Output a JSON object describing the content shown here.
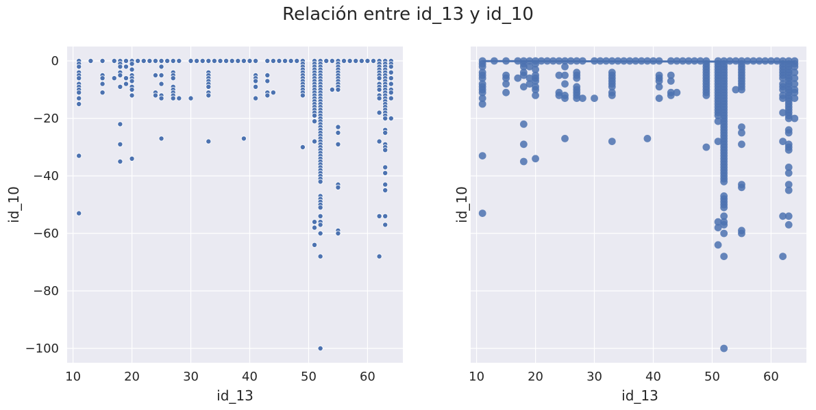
{
  "figure": {
    "title": "Relación entre id_13 y id_10"
  },
  "colors": {
    "background": "#eaeaf2",
    "grid": "#ffffff",
    "point": "#4c72b0",
    "text": "#262626"
  },
  "chart_data": [
    {
      "type": "scatter",
      "title": "",
      "xlabel": "id_13",
      "ylabel": "id_10",
      "xlim": [
        9,
        66
      ],
      "ylim": [
        -105,
        5
      ],
      "xticks": [
        10,
        20,
        30,
        40,
        50,
        60
      ],
      "yticks": [
        0,
        -20,
        -40,
        -60,
        -80,
        -100
      ],
      "ytick_labels": [
        "0",
        "−20",
        "−40",
        "−60",
        "−80",
        "−100"
      ],
      "grid": true,
      "marker": "small-dot-white-edge",
      "columns": [
        {
          "x": 11,
          "y": [
            0,
            -1,
            -2,
            -4,
            -5,
            -6,
            -8,
            -9,
            -10,
            -11,
            -13,
            -15,
            -33,
            -53
          ]
        },
        {
          "x": 13,
          "y": [
            0
          ]
        },
        {
          "x": 15,
          "y": [
            0,
            -5,
            -6,
            -8,
            -11
          ]
        },
        {
          "x": 17,
          "y": [
            0,
            -6
          ]
        },
        {
          "x": 18,
          "y": [
            0,
            -1,
            -2,
            -4,
            -5,
            -9,
            -22,
            -29,
            -35
          ]
        },
        {
          "x": 19,
          "y": [
            0,
            -2,
            -6,
            -8
          ]
        },
        {
          "x": 20,
          "y": [
            0,
            -1,
            -3,
            -5,
            -6,
            -7,
            -9,
            -10,
            -12,
            -34
          ]
        },
        {
          "x": 21,
          "y": [
            0
          ]
        },
        {
          "x": 22,
          "y": [
            0
          ]
        },
        {
          "x": 23,
          "y": [
            0
          ]
        },
        {
          "x": 24,
          "y": [
            0,
            -5,
            -11,
            -12
          ]
        },
        {
          "x": 25,
          "y": [
            0,
            -2,
            -5,
            -8,
            -12,
            -13,
            -27
          ]
        },
        {
          "x": 26,
          "y": [
            0
          ]
        },
        {
          "x": 27,
          "y": [
            0,
            -4,
            -5,
            -6,
            -9,
            -10,
            -11,
            -12,
            -13
          ]
        },
        {
          "x": 28,
          "y": [
            0,
            -13
          ]
        },
        {
          "x": 30,
          "y": [
            0,
            -13
          ]
        },
        {
          "x": 31,
          "y": [
            0
          ]
        },
        {
          "x": 32,
          "y": [
            0
          ]
        },
        {
          "x": 33,
          "y": [
            0,
            -4,
            -5,
            -6,
            -7,
            -8,
            -9,
            -11,
            -12,
            -28
          ]
        },
        {
          "x": 34,
          "y": [
            0
          ]
        },
        {
          "x": 35,
          "y": [
            0
          ]
        },
        {
          "x": 36,
          "y": [
            0
          ]
        },
        {
          "x": 37,
          "y": [
            0
          ]
        },
        {
          "x": 38,
          "y": [
            0
          ]
        },
        {
          "x": 39,
          "y": [
            0,
            -27
          ]
        },
        {
          "x": 40,
          "y": [
            0
          ]
        },
        {
          "x": 41,
          "y": [
            0,
            -5,
            -6,
            -7,
            -9,
            -13
          ]
        },
        {
          "x": 43,
          "y": [
            0,
            -5,
            -7,
            -11,
            -12
          ]
        },
        {
          "x": 44,
          "y": [
            0,
            -11
          ]
        },
        {
          "x": 45,
          "y": [
            0
          ]
        },
        {
          "x": 46,
          "y": [
            0
          ]
        },
        {
          "x": 47,
          "y": [
            0
          ]
        },
        {
          "x": 48,
          "y": [
            0
          ]
        },
        {
          "x": 49,
          "y": [
            0,
            -1,
            -2,
            -3,
            -4,
            -5,
            -6,
            -7,
            -8,
            -9,
            -10,
            -11,
            -12,
            -30
          ]
        },
        {
          "x": 51,
          "y": [
            0,
            -1,
            -2,
            -3,
            -4,
            -5,
            -6,
            -7,
            -8,
            -9,
            -10,
            -11,
            -12,
            -13,
            -14,
            -15,
            -16,
            -17,
            -18,
            -19,
            -21,
            -28,
            -56,
            -58,
            -64
          ]
        },
        {
          "x": 52,
          "y": [
            0,
            -1,
            -2,
            -3,
            -4,
            -5,
            -6,
            -7,
            -8,
            -9,
            -10,
            -11,
            -12,
            -13,
            -14,
            -15,
            -16,
            -17,
            -18,
            -19,
            -20,
            -21,
            -22,
            -23,
            -24,
            -25,
            -26,
            -27,
            -28,
            -29,
            -30,
            -31,
            -32,
            -33,
            -34,
            -35,
            -36,
            -37,
            -38,
            -39,
            -40,
            -41,
            -42,
            -47,
            -48,
            -49,
            -50,
            -51,
            -54,
            -56,
            -57,
            -60,
            -68,
            -100
          ]
        },
        {
          "x": 53,
          "y": [
            0
          ]
        },
        {
          "x": 54,
          "y": [
            0,
            -10
          ]
        },
        {
          "x": 55,
          "y": [
            0,
            -1,
            -2,
            -3,
            -4,
            -5,
            -6,
            -7,
            -8,
            -9,
            -10,
            -23,
            -25,
            -29,
            -43,
            -44,
            -59,
            -60
          ]
        },
        {
          "x": 56,
          "y": [
            0
          ]
        },
        {
          "x": 57,
          "y": [
            0
          ]
        },
        {
          "x": 58,
          "y": [
            0
          ]
        },
        {
          "x": 59,
          "y": [
            0
          ]
        },
        {
          "x": 60,
          "y": [
            0
          ]
        },
        {
          "x": 61,
          "y": [
            0
          ]
        },
        {
          "x": 62,
          "y": [
            0,
            -1,
            -2,
            -3,
            -4,
            -5,
            -6,
            -8,
            -9,
            -10,
            -12,
            -13,
            -18,
            -28,
            -54,
            -68
          ]
        },
        {
          "x": 63,
          "y": [
            0,
            -1,
            -2,
            -3,
            -4,
            -5,
            -6,
            -7,
            -8,
            -9,
            -10,
            -11,
            -12,
            -13,
            -14,
            -15,
            -16,
            -17,
            -18,
            -19,
            -20,
            -24,
            -25,
            -29,
            -30,
            -31,
            -37,
            -39,
            -43,
            -45,
            -54,
            -57
          ]
        },
        {
          "x": 64,
          "y": [
            0,
            -1,
            -2,
            -4,
            -6,
            -8,
            -10,
            -11,
            -13,
            -20
          ]
        }
      ]
    },
    {
      "type": "scatter",
      "title": "",
      "xlabel": "id_13",
      "ylabel": "id_10",
      "xlim": [
        9,
        66
      ],
      "ylim": [
        -105,
        5
      ],
      "xticks": [
        10,
        20,
        30,
        40,
        50,
        60
      ],
      "yticks": [
        0,
        -20,
        -40,
        -60,
        -80,
        -100
      ],
      "ytick_labels": [],
      "grid": true,
      "marker": "large-dot-alpha",
      "regression_line": {
        "x": [
          11,
          64
        ],
        "y": [
          -0.05,
          -0.3
        ]
      },
      "columns_from": 0
    }
  ]
}
